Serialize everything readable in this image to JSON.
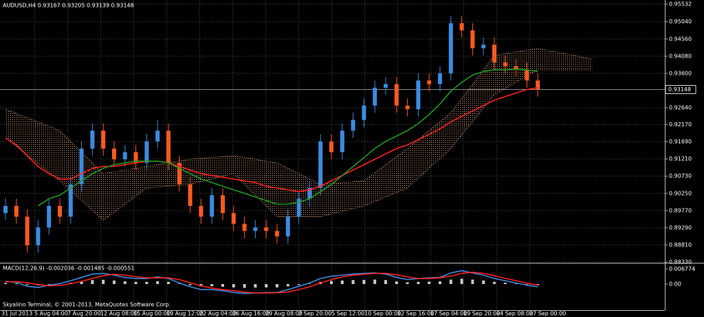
{
  "header": "AUDUSD,H4  0.93167 0.93205 0.93139 0.93148",
  "copyright": "Skyalino Terminal, © 2001-2013, MetaQuotes Software Corp.",
  "x_axis_labels": [
    "31 Jul 2013",
    "5 Aug 04:00",
    "7 Aug 20:00",
    "12 Aug 08:00",
    "15 Aug 00:00",
    "19 Aug 12:00",
    "22 Aug 04:00",
    "26 Aug 16:00",
    "29 Aug 08:00",
    "2 Sep 20:00",
    "5 Sep 12:00",
    "10 Sep 00:00",
    "12 Sep 16:00",
    "17 Sep 04:00",
    "19 Sep 20:00",
    "24 Sep 08:00",
    "27 Sep 00:00"
  ],
  "chart_data": [
    {
      "type": "candlestick",
      "up_color": "#3d8be0",
      "down_color": "#ff5a1f",
      "grid": true,
      "open": [
        0.897,
        0.899,
        0.896,
        0.888,
        0.893,
        0.899,
        0.896,
        0.905,
        0.915,
        0.92,
        0.915,
        0.912,
        0.914,
        0.911,
        0.917,
        0.92,
        0.911,
        0.905,
        0.899,
        0.896,
        0.902,
        0.897,
        0.894,
        0.892,
        0.893,
        0.892,
        0.8905,
        0.896,
        0.901,
        0.904,
        0.917,
        0.914,
        0.92,
        0.923,
        0.927,
        0.932,
        0.933,
        0.927,
        0.926,
        0.934,
        0.933,
        0.936,
        0.95,
        0.948,
        0.943,
        0.944,
        0.939,
        0.938,
        0.937,
        0.934
      ],
      "high": [
        0.901,
        0.901,
        0.898,
        0.895,
        0.901,
        0.901,
        0.907,
        0.917,
        0.922,
        0.922,
        0.917,
        0.916,
        0.916,
        0.919,
        0.923,
        0.922,
        0.913,
        0.907,
        0.901,
        0.904,
        0.904,
        0.899,
        0.896,
        0.895,
        0.895,
        0.894,
        0.898,
        0.903,
        0.906,
        0.919,
        0.919,
        0.922,
        0.925,
        0.929,
        0.934,
        0.935,
        0.935,
        0.929,
        0.936,
        0.936,
        0.938,
        0.952,
        0.952,
        0.95,
        0.946,
        0.946,
        0.941,
        0.94,
        0.939,
        0.936
      ],
      "low": [
        0.895,
        0.894,
        0.886,
        0.886,
        0.891,
        0.894,
        0.894,
        0.903,
        0.913,
        0.913,
        0.91,
        0.91,
        0.909,
        0.909,
        0.915,
        0.909,
        0.903,
        0.897,
        0.894,
        0.894,
        0.895,
        0.892,
        0.89,
        0.89,
        0.89,
        0.8885,
        0.8885,
        0.894,
        0.899,
        0.902,
        0.912,
        0.912,
        0.918,
        0.921,
        0.925,
        0.93,
        0.925,
        0.924,
        0.924,
        0.931,
        0.931,
        0.934,
        0.946,
        0.941,
        0.941,
        0.937,
        0.936,
        0.935,
        0.932,
        0.9295
      ],
      "close": [
        0.899,
        0.896,
        0.888,
        0.893,
        0.899,
        0.896,
        0.905,
        0.915,
        0.92,
        0.915,
        0.912,
        0.914,
        0.911,
        0.917,
        0.92,
        0.911,
        0.905,
        0.899,
        0.896,
        0.902,
        0.897,
        0.894,
        0.892,
        0.893,
        0.892,
        0.8905,
        0.896,
        0.901,
        0.904,
        0.917,
        0.914,
        0.92,
        0.923,
        0.927,
        0.932,
        0.933,
        0.927,
        0.926,
        0.934,
        0.933,
        0.936,
        0.95,
        0.948,
        0.943,
        0.944,
        0.939,
        0.938,
        0.937,
        0.934,
        0.9315
      ],
      "lines": [
        {
          "color": "#ff2020",
          "values": [
            0.918,
            0.916,
            0.913,
            0.91,
            0.908,
            0.9065,
            0.9065,
            0.908,
            0.9095,
            0.91,
            0.91,
            0.9105,
            0.911,
            0.9115,
            0.9115,
            0.911,
            0.91,
            0.909,
            0.908,
            0.9075,
            0.907,
            0.9065,
            0.906,
            0.9055,
            0.9045,
            0.904,
            0.9035,
            0.903,
            0.9035,
            0.9045,
            0.906,
            0.9075,
            0.909,
            0.9105,
            0.912,
            0.9135,
            0.915,
            0.916,
            0.9175,
            0.919,
            0.9205,
            0.9225,
            0.924,
            0.9255,
            0.927,
            0.9285,
            0.9295,
            0.9305,
            0.9315,
            0.932
          ]
        },
        {
          "color": "#1f9a1f",
          "values": [
            null,
            null,
            null,
            0.899,
            0.901,
            0.902,
            0.904,
            0.906,
            0.908,
            0.9095,
            0.9105,
            0.911,
            0.9115,
            0.9115,
            0.9115,
            0.911,
            0.9095,
            0.908,
            0.9065,
            0.9055,
            0.9045,
            0.9035,
            0.9025,
            0.9015,
            0.9005,
            0.8995,
            0.8995,
            0.9,
            0.901,
            0.903,
            0.905,
            0.9075,
            0.91,
            0.9125,
            0.915,
            0.917,
            0.9185,
            0.92,
            0.922,
            0.9245,
            0.9275,
            0.931,
            0.9335,
            0.9355,
            0.9365,
            0.937,
            0.937,
            0.9372,
            0.937,
            0.9365
          ]
        }
      ],
      "cloud": {
        "color": "#e0a27a",
        "x": [
          0,
          5,
          9,
          13,
          17,
          21,
          25,
          29,
          33,
          37,
          41,
          45,
          49,
          54
        ],
        "upper": [
          0.926,
          0.92,
          0.908,
          0.91,
          0.912,
          0.913,
          0.911,
          0.905,
          0.906,
          0.915,
          0.925,
          0.941,
          0.943,
          0.94
        ],
        "lower": [
          0.918,
          0.906,
          0.895,
          0.904,
          0.905,
          0.908,
          0.896,
          0.896,
          0.899,
          0.904,
          0.915,
          0.93,
          0.937,
          0.937
        ]
      },
      "current_price": 0.93148,
      "ylim": [
        0.88312,
        0.95647
      ],
      "yticks": [
        0.95532,
        {
          "value": 0.9504,
          "label": "0.95040"
        },
        {
          "value": 0.9456,
          "label": "0.94560"
        },
        {
          "value": 0.9408,
          "label": "0.94080"
        },
        {
          "value": 0.936,
          "label": "0.93600"
        },
        {
          "value": 0.9264,
          "label": "0.92640"
        },
        {
          "value": 0.9217,
          "label": "0.92170"
        },
        {
          "value": 0.9169,
          "label": "0.91690"
        },
        {
          "value": 0.9121,
          "label": "0.91210"
        },
        {
          "value": 0.9073,
          "label": "0.90730"
        },
        {
          "value": 0.9025,
          "label": "0.90250"
        },
        {
          "value": 0.8977,
          "label": "0.89770"
        },
        {
          "value": 0.8929,
          "label": "0.89290"
        },
        {
          "value": 0.8881,
          "label": "0.88810"
        },
        {
          "value": 0.8833,
          "label": "0.88330"
        }
      ]
    },
    {
      "type": "macd",
      "title": "MACD(12,26,9) -0.002036 -0.001485 -0.000551",
      "histogram": {
        "color": "#c8c8c8",
        "values": [
          0.0005,
          0.0003,
          -0.0004,
          -0.0006,
          -0.0002,
          0.0001,
          0.0006,
          0.0012,
          0.0018,
          0.0019,
          0.0016,
          0.0012,
          0.001,
          0.001,
          0.0013,
          0.001,
          0.0002,
          -0.0005,
          -0.001,
          -0.001,
          -0.0012,
          -0.0015,
          -0.0017,
          -0.0016,
          -0.0015,
          -0.0015,
          -0.001,
          -0.0004,
          0.0002,
          0.001,
          0.0014,
          0.0016,
          0.0018,
          0.0019,
          0.002,
          0.0018,
          0.0012,
          0.0008,
          0.001,
          0.0011,
          0.0012,
          0.002,
          0.0024,
          0.002,
          0.0016,
          0.001,
          0.0006,
          0.0002,
          -0.0002,
          -0.0005
        ]
      },
      "lines": [
        {
          "color": "#3d8be0",
          "values": [
            0.0012,
            0.0008,
            -0.001,
            -0.0015,
            -0.0005,
            0.0002,
            0.0015,
            0.003,
            0.0045,
            0.0048,
            0.004,
            0.003,
            0.0025,
            0.0025,
            0.0032,
            0.0025,
            0.0005,
            -0.0012,
            -0.0025,
            -0.0025,
            -0.003,
            -0.0038,
            -0.0042,
            -0.004,
            -0.0038,
            -0.0038,
            -0.0025,
            -0.001,
            0.0005,
            0.0025,
            0.0035,
            0.004,
            0.0045,
            0.0048,
            0.005,
            0.0045,
            0.003,
            0.002,
            0.0025,
            0.0028,
            0.003,
            0.005,
            0.006,
            0.005,
            0.004,
            0.0025,
            0.0015,
            0.0005,
            -0.0005,
            -0.0012
          ]
        },
        {
          "color": "#ff2020",
          "values": [
            0.001,
            0.0011,
            0.0006,
            -0.0002,
            -0.0008,
            -0.0006,
            0.0002,
            0.0012,
            0.0025,
            0.0038,
            0.0044,
            0.004,
            0.0033,
            0.0028,
            0.0028,
            0.0028,
            0.002,
            0.0006,
            -0.0008,
            -0.0018,
            -0.0025,
            -0.003,
            -0.0036,
            -0.004,
            -0.004,
            -0.0039,
            -0.0035,
            -0.0025,
            -0.0012,
            0.0005,
            0.002,
            0.0032,
            0.004,
            0.0044,
            0.0048,
            0.0048,
            0.0042,
            0.0032,
            0.0025,
            0.0025,
            0.0028,
            0.0036,
            0.0048,
            0.0053,
            0.0048,
            0.0038,
            0.0026,
            0.0015,
            0.0004,
            -0.0004
          ]
        }
      ],
      "ylim": [
        -0.0117,
        0.00893
      ],
      "yticks": [
        0.006774,
        {
          "value": 0,
          "label": "0.00"
        }
      ]
    }
  ]
}
